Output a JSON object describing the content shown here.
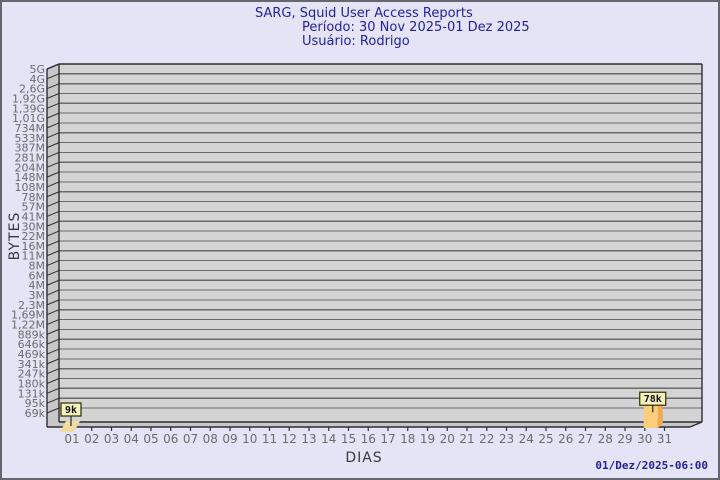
{
  "header": {
    "title": "SARG, Squid User Access Reports",
    "period": "Período: 30 Nov 2025-01 Dez 2025",
    "user": "Usuário: Rodrigo"
  },
  "footer": {
    "generated": "01/Dez/2025-06:00"
  },
  "chart_data": {
    "type": "bar",
    "title": "SARG, Squid User Access Reports",
    "subtitle": [
      "Período: 30 Nov 2025-01 Dez 2025",
      "Usuário: Rodrigo"
    ],
    "xlabel": "DIAS",
    "ylabel": "BYTES",
    "y_scale": "log",
    "legend": "none",
    "grid": "horizontal",
    "x_categories": [
      "01",
      "02",
      "03",
      "04",
      "05",
      "06",
      "07",
      "08",
      "09",
      "10",
      "11",
      "12",
      "13",
      "14",
      "15",
      "16",
      "17",
      "18",
      "19",
      "20",
      "21",
      "22",
      "23",
      "24",
      "25",
      "26",
      "27",
      "28",
      "29",
      "30",
      "31"
    ],
    "y_tick_labels": [
      "5G",
      "4G",
      "2,6G",
      "1,92G",
      "1,39G",
      "1,01G",
      "734M",
      "533M",
      "387M",
      "281M",
      "204M",
      "148M",
      "108M",
      "78M",
      "57M",
      "41M",
      "30M",
      "22M",
      "16M",
      "11M",
      "8M",
      "6M",
      "4M",
      "3M",
      "2,3M",
      "1,69M",
      "1,22M",
      "889k",
      "646k",
      "469k",
      "341k",
      "247k",
      "180k",
      "131k",
      "95k",
      "69k"
    ],
    "bars": [
      {
        "day": "01",
        "value_label": "9k",
        "value_bytes": 9000
      },
      {
        "day": "30",
        "value_label": "78k",
        "value_bytes": 78000
      }
    ],
    "colors": {
      "background": "#E4E4F6",
      "title": "#22229B",
      "plot_bg": "#D4D4D4",
      "wall": "#C7C7C7",
      "gridline": "#6A6A6A",
      "frame": "#2E2E2E",
      "tick_text": "#6B6B6B",
      "bar_front": "#FBCE7C",
      "bar_side": "#F2A94F",
      "bar_top": "#FDE9B3",
      "bar_flat": "#F0DCA0",
      "value_box_bg": "#F6F1BC",
      "value_box_border": "#2B2B00",
      "value_text": "#111111",
      "axis_label": "#3A3A3A",
      "timestamp": "#22229B"
    }
  }
}
